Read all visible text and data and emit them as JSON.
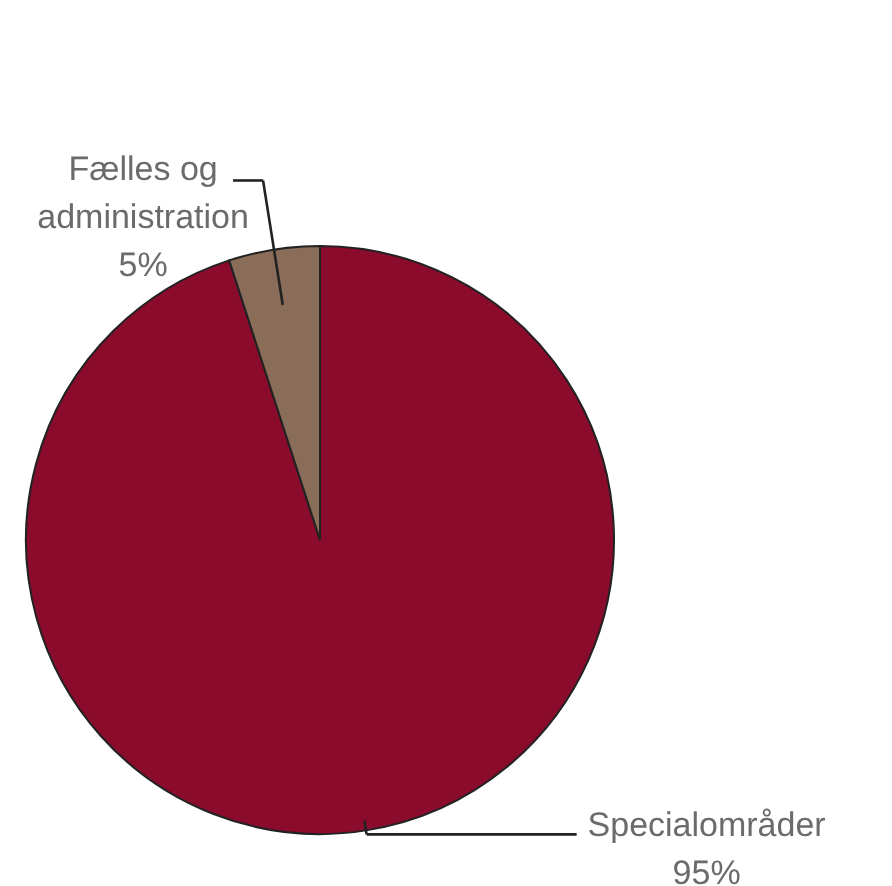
{
  "chart_data": {
    "type": "pie",
    "categories": [
      "Specialområder",
      "Fælles og administration"
    ],
    "values": [
      95,
      5
    ],
    "value_labels": [
      "95%",
      "5%"
    ],
    "colors": [
      "#8b0b2d",
      "#8a6d58"
    ]
  }
}
